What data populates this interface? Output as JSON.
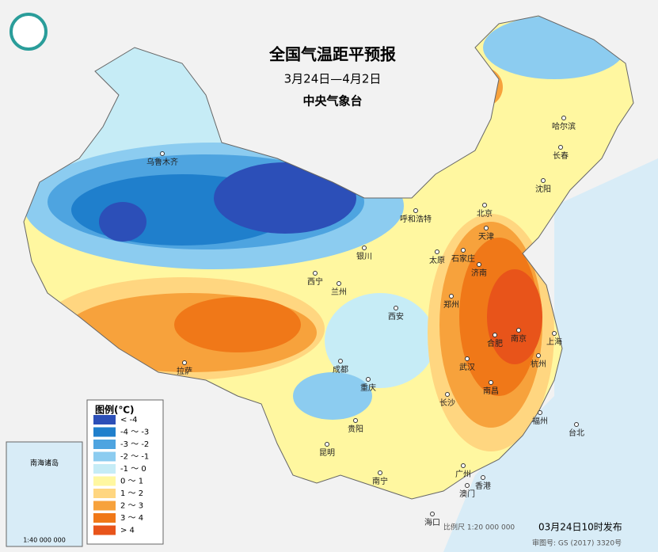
{
  "header": {
    "title": "全国气温距平预报",
    "period": "3月24日—4月2日",
    "agency": "中央气象台"
  },
  "legend": {
    "title": "图例(℃)",
    "items": [
      {
        "label": "< -4",
        "color": "#2c4fb8"
      },
      {
        "label": "-4 ～ -3",
        "color": "#1f7fcc"
      },
      {
        "label": "-3 ～ -2",
        "color": "#4ea4e0"
      },
      {
        "label": "-2 ～ -1",
        "color": "#8cccf0"
      },
      {
        "label": "-1 ～ 0",
        "color": "#c6ecf6"
      },
      {
        "label": "0 ～ 1",
        "color": "#fff7a0"
      },
      {
        "label": "1 ～ 2",
        "color": "#ffd680"
      },
      {
        "label": "2 ～ 3",
        "color": "#f7a23c"
      },
      {
        "label": "3 ～ 4",
        "color": "#f07818"
      },
      {
        "label": "> 4",
        "color": "#e8541a"
      }
    ]
  },
  "cities": [
    "乌鲁木齐",
    "呼和浩特",
    "北京",
    "天津",
    "哈尔滨",
    "长春",
    "沈阳",
    "石家庄",
    "太原",
    "银川",
    "西宁",
    "兰州",
    "济南",
    "郑州",
    "西安",
    "合肥",
    "南京",
    "上海",
    "武汉",
    "杭州",
    "成都",
    "重庆",
    "长沙",
    "南昌",
    "拉萨",
    "贵阳",
    "福州",
    "台北",
    "昆明",
    "南宁",
    "广州",
    "香港",
    "澳门",
    "海口"
  ],
  "inset": {
    "title": "南海诸岛",
    "scale": "1:40 000 000"
  },
  "footer": {
    "scale": "比例尺 1:20 000 000",
    "issued": "03月24日10时发布",
    "approval": "审图号: GS (2017) 3320号"
  }
}
